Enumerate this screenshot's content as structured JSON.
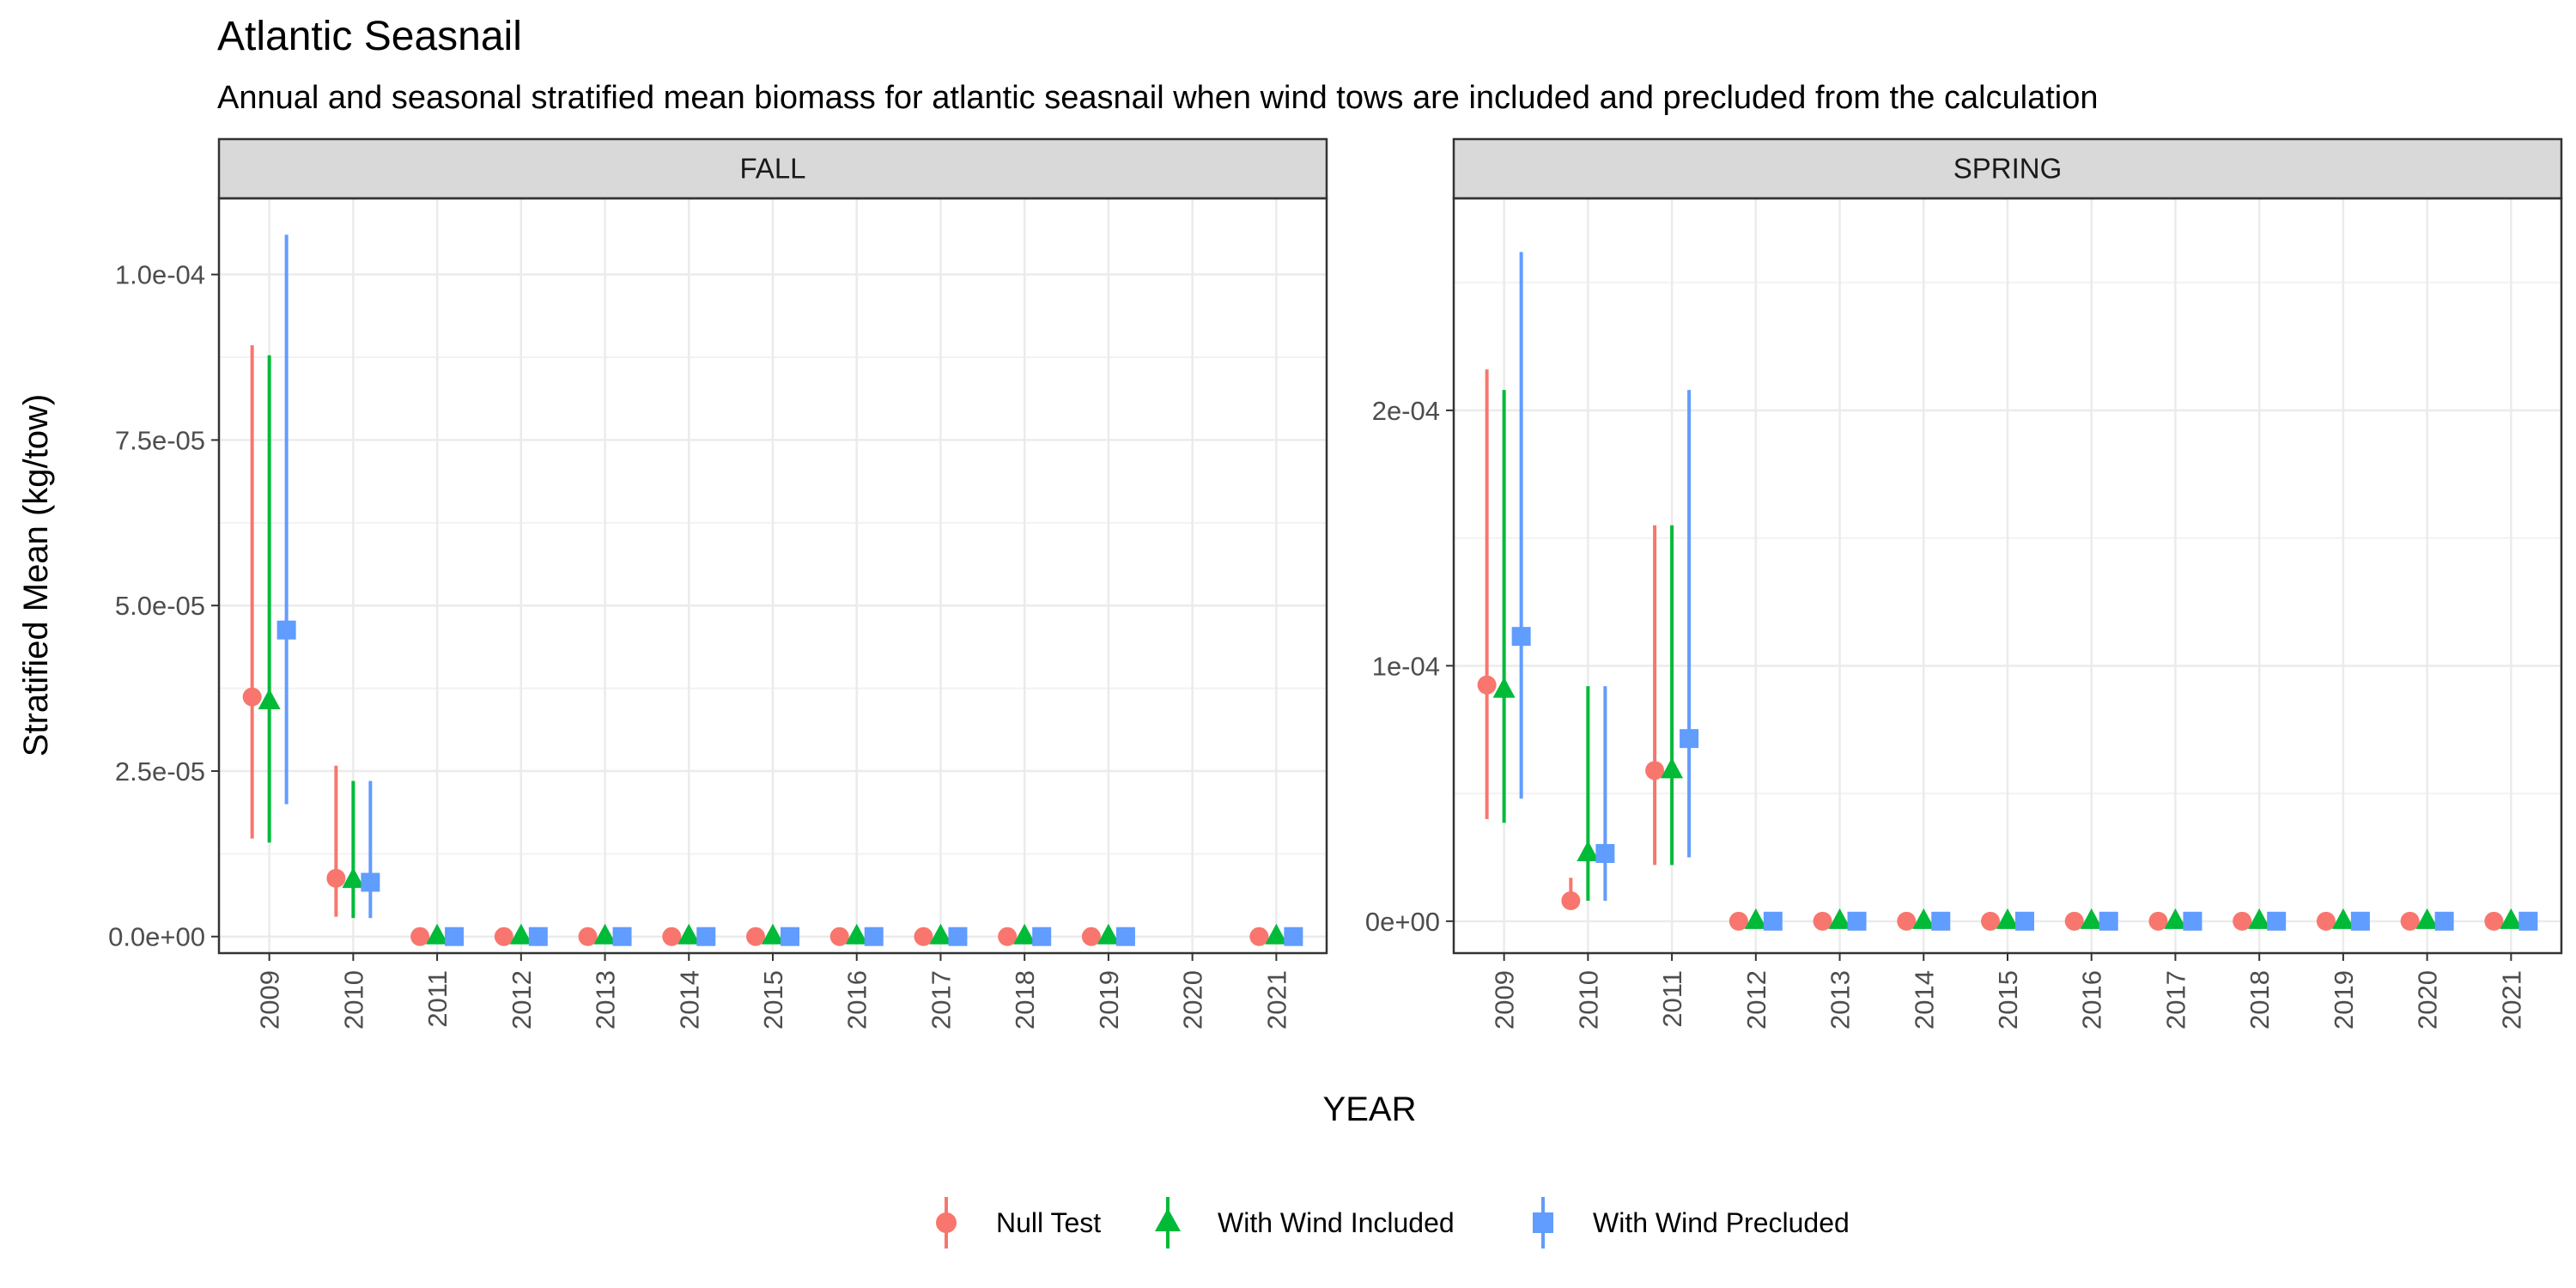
{
  "chart_data": {
    "type": "scatter",
    "title": "Atlantic Seasnail",
    "subtitle": "Annual and seasonal stratified mean biomass for atlantic seasnail when wind tows are included and precluded from the calculation",
    "xlabel": "YEAR",
    "ylabel": "Stratified Mean (kg/tow)",
    "legend_position": "bottom",
    "grid": true,
    "series_styles": [
      {
        "name": "Null Test",
        "color": "#F8766D",
        "shape": "circle"
      },
      {
        "name": "With Wind Included",
        "color": "#00BA38",
        "shape": "triangle"
      },
      {
        "name": "With Wind Precluded",
        "color": "#619CFF",
        "shape": "square"
      }
    ],
    "panels": [
      {
        "strip": "FALL",
        "ylim": [
          -2.5e-06,
          0.0001115
        ],
        "y_ticks": [
          0,
          2.5e-05,
          5e-05,
          7.5e-05,
          0.0001
        ],
        "y_tick_labels": [
          "0.0e+00",
          "2.5e-05",
          "5.0e-05",
          "7.5e-05",
          "1.0e-04"
        ],
        "categories": [
          "2009",
          "2010",
          "2011",
          "2012",
          "2013",
          "2014",
          "2015",
          "2016",
          "2017",
          "2018",
          "2019",
          "2020",
          "2021"
        ],
        "series": [
          {
            "name": "Null Test",
            "values": [
              3.62e-05,
              8.8e-06,
              0,
              0,
              0,
              0,
              0,
              0,
              0,
              0,
              0,
              null,
              0
            ],
            "lower": [
              1.48e-05,
              3e-06,
              0,
              0,
              0,
              0,
              0,
              0,
              0,
              0,
              0,
              null,
              0
            ],
            "upper": [
              8.93e-05,
              2.58e-05,
              0,
              0,
              0,
              0,
              0,
              0,
              0,
              0,
              0,
              null,
              0
            ]
          },
          {
            "name": "With Wind Included",
            "values": [
              3.55e-05,
              8.5e-06,
              0,
              0,
              0,
              0,
              0,
              0,
              0,
              0,
              0,
              null,
              0
            ],
            "lower": [
              1.42e-05,
              2.8e-06,
              0,
              0,
              0,
              0,
              0,
              0,
              0,
              0,
              0,
              null,
              0
            ],
            "upper": [
              8.78e-05,
              2.35e-05,
              0,
              0,
              0,
              0,
              0,
              0,
              0,
              0,
              0,
              null,
              0
            ]
          },
          {
            "name": "With Wind Precluded",
            "values": [
              4.63e-05,
              8.2e-06,
              0,
              0,
              0,
              0,
              0,
              0,
              0,
              0,
              0,
              null,
              0
            ],
            "lower": [
              2e-05,
              2.8e-06,
              0,
              0,
              0,
              0,
              0,
              0,
              0,
              0,
              0,
              null,
              0
            ],
            "upper": [
              0.000106,
              2.35e-05,
              0,
              0,
              0,
              0,
              0,
              0,
              0,
              0,
              0,
              null,
              0
            ]
          }
        ]
      },
      {
        "strip": "SPRING",
        "ylim": [
          -1.25e-05,
          0.000283
        ],
        "y_ticks": [
          0,
          0.0001,
          0.0002
        ],
        "y_tick_labels": [
          "0e+00",
          "1e-04",
          "2e-04"
        ],
        "categories": [
          "2009",
          "2010",
          "2011",
          "2012",
          "2013",
          "2014",
          "2015",
          "2016",
          "2017",
          "2018",
          "2019",
          "2020",
          "2021"
        ],
        "series": [
          {
            "name": "Null Test",
            "values": [
              9.25e-05,
              8e-06,
              5.9e-05,
              0,
              0,
              0,
              0,
              0,
              0,
              0,
              0,
              0,
              0
            ],
            "lower": [
              4e-05,
              5e-06,
              2.2e-05,
              0,
              0,
              0,
              0,
              0,
              0,
              0,
              0,
              0,
              0
            ],
            "upper": [
              0.000216,
              1.7e-05,
              0.000155,
              0,
              0,
              0,
              0,
              0,
              0,
              0,
              0,
              0,
              0
            ]
          },
          {
            "name": "With Wind Included",
            "values": [
              9.05e-05,
              2.65e-05,
              5.9e-05,
              0,
              0,
              0,
              0,
              0,
              0,
              0,
              0,
              0,
              0
            ],
            "lower": [
              3.85e-05,
              8e-06,
              2.2e-05,
              0,
              0,
              0,
              0,
              0,
              0,
              0,
              0,
              0,
              0
            ],
            "upper": [
              0.000208,
              9.2e-05,
              0.000155,
              0,
              0,
              0,
              0,
              0,
              0,
              0,
              0,
              0,
              0
            ]
          },
          {
            "name": "With Wind Precluded",
            "values": [
              0.0001115,
              2.65e-05,
              7.15e-05,
              0,
              0,
              0,
              0,
              0,
              0,
              0,
              0,
              0,
              0
            ],
            "lower": [
              4.8e-05,
              8e-06,
              2.5e-05,
              0,
              0,
              0,
              0,
              0,
              0,
              0,
              0,
              0,
              0
            ],
            "upper": [
              0.000262,
              9.2e-05,
              0.000208,
              0,
              0,
              0,
              0,
              0,
              0,
              0,
              0,
              0,
              0
            ]
          }
        ]
      }
    ]
  }
}
